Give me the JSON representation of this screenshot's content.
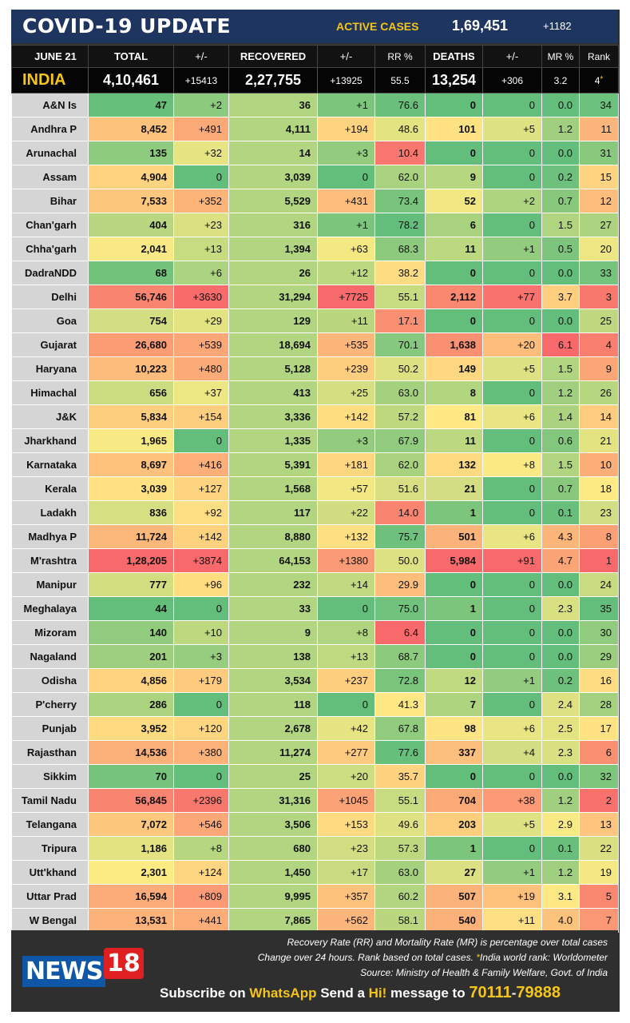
{
  "header": {
    "title": "COVID-19 UPDATE",
    "active_label": "ACTIVE CASES",
    "active_value": "1,69,451",
    "active_change": "+1182"
  },
  "columns": {
    "date": "JUNE 21",
    "total": "TOTAL",
    "total_change": "+/-",
    "recovered": "RECOVERED",
    "recovered_change": "+/-",
    "rr": "RR %",
    "deaths": "DEATHS",
    "deaths_change": "+/-",
    "mr": "MR %",
    "rank": "Rank"
  },
  "india": {
    "name": "INDIA",
    "total": "4,10,461",
    "total_change": "+15413",
    "recovered": "2,27,755",
    "recovered_change": "+13925",
    "rr": "55.5",
    "deaths": "13,254",
    "deaths_change": "+306",
    "mr": "3.2",
    "rank": "4",
    "rank_mark": "*"
  },
  "rows": [
    {
      "name": "A&N Is",
      "total": "47",
      "tc": "+2",
      "rec": "36",
      "rc": "+1",
      "rr": "76.6",
      "deaths": "0",
      "dc": "0",
      "mr": "0.0",
      "rank": "34"
    },
    {
      "name": "Andhra P",
      "total": "8,452",
      "tc": "+491",
      "rec": "4,111",
      "rc": "+194",
      "rr": "48.6",
      "deaths": "101",
      "dc": "+5",
      "mr": "1.2",
      "rank": "11"
    },
    {
      "name": "Arunachal",
      "total": "135",
      "tc": "+32",
      "rec": "14",
      "rc": "+3",
      "rr": "10.4",
      "deaths": "0",
      "dc": "0",
      "mr": "0.0",
      "rank": "31"
    },
    {
      "name": "Assam",
      "total": "4,904",
      "tc": "0",
      "rec": "3,039",
      "rc": "0",
      "rr": "62.0",
      "deaths": "9",
      "dc": "0",
      "mr": "0.2",
      "rank": "15"
    },
    {
      "name": "Bihar",
      "total": "7,533",
      "tc": "+352",
      "rec": "5,529",
      "rc": "+431",
      "rr": "73.4",
      "deaths": "52",
      "dc": "+2",
      "mr": "0.7",
      "rank": "12"
    },
    {
      "name": "Chan'garh",
      "total": "404",
      "tc": "+23",
      "rec": "316",
      "rc": "+1",
      "rr": "78.2",
      "deaths": "6",
      "dc": "0",
      "mr": "1.5",
      "rank": "27"
    },
    {
      "name": "Chha'garh",
      "total": "2,041",
      "tc": "+13",
      "rec": "1,394",
      "rc": "+63",
      "rr": "68.3",
      "deaths": "11",
      "dc": "+1",
      "mr": "0.5",
      "rank": "20"
    },
    {
      "name": "DadraNDD",
      "total": "68",
      "tc": "+6",
      "rec": "26",
      "rc": "+12",
      "rr": "38.2",
      "deaths": "0",
      "dc": "0",
      "mr": "0.0",
      "rank": "33"
    },
    {
      "name": "Delhi",
      "total": "56,746",
      "tc": "+3630",
      "rec": "31,294",
      "rc": "+7725",
      "rr": "55.1",
      "deaths": "2,112",
      "dc": "+77",
      "mr": "3.7",
      "rank": "3"
    },
    {
      "name": "Goa",
      "total": "754",
      "tc": "+29",
      "rec": "129",
      "rc": "+11",
      "rr": "17.1",
      "deaths": "0",
      "dc": "0",
      "mr": "0.0",
      "rank": "25"
    },
    {
      "name": "Gujarat",
      "total": "26,680",
      "tc": "+539",
      "rec": "18,694",
      "rc": "+535",
      "rr": "70.1",
      "deaths": "1,638",
      "dc": "+20",
      "mr": "6.1",
      "rank": "4"
    },
    {
      "name": "Haryana",
      "total": "10,223",
      "tc": "+480",
      "rec": "5,128",
      "rc": "+239",
      "rr": "50.2",
      "deaths": "149",
      "dc": "+5",
      "mr": "1.5",
      "rank": "9"
    },
    {
      "name": "Himachal",
      "total": "656",
      "tc": "+37",
      "rec": "413",
      "rc": "+25",
      "rr": "63.0",
      "deaths": "8",
      "dc": "0",
      "mr": "1.2",
      "rank": "26"
    },
    {
      "name": "J&K",
      "total": "5,834",
      "tc": "+154",
      "rec": "3,336",
      "rc": "+142",
      "rr": "57.2",
      "deaths": "81",
      "dc": "+6",
      "mr": "1.4",
      "rank": "14"
    },
    {
      "name": "Jharkhand",
      "total": "1,965",
      "tc": "0",
      "rec": "1,335",
      "rc": "+3",
      "rr": "67.9",
      "deaths": "11",
      "dc": "0",
      "mr": "0.6",
      "rank": "21"
    },
    {
      "name": "Karnataka",
      "total": "8,697",
      "tc": "+416",
      "rec": "5,391",
      "rc": "+181",
      "rr": "62.0",
      "deaths": "132",
      "dc": "+8",
      "mr": "1.5",
      "rank": "10"
    },
    {
      "name": "Kerala",
      "total": "3,039",
      "tc": "+127",
      "rec": "1,568",
      "rc": "+57",
      "rr": "51.6",
      "deaths": "21",
      "dc": "0",
      "mr": "0.7",
      "rank": "18"
    },
    {
      "name": "Ladakh",
      "total": "836",
      "tc": "+92",
      "rec": "117",
      "rc": "+22",
      "rr": "14.0",
      "deaths": "1",
      "dc": "0",
      "mr": "0.1",
      "rank": "23"
    },
    {
      "name": "Madhya P",
      "total": "11,724",
      "tc": "+142",
      "rec": "8,880",
      "rc": "+132",
      "rr": "75.7",
      "deaths": "501",
      "dc": "+6",
      "mr": "4.3",
      "rank": "8"
    },
    {
      "name": "M'rashtra",
      "total": "1,28,205",
      "tc": "+3874",
      "rec": "64,153",
      "rc": "+1380",
      "rr": "50.0",
      "deaths": "5,984",
      "dc": "+91",
      "mr": "4.7",
      "rank": "1"
    },
    {
      "name": "Manipur",
      "total": "777",
      "tc": "+96",
      "rec": "232",
      "rc": "+14",
      "rr": "29.9",
      "deaths": "0",
      "dc": "0",
      "mr": "0.0",
      "rank": "24"
    },
    {
      "name": "Meghalaya",
      "total": "44",
      "tc": "0",
      "rec": "33",
      "rc": "0",
      "rr": "75.0",
      "deaths": "1",
      "dc": "0",
      "mr": "2.3",
      "rank": "35"
    },
    {
      "name": "Mizoram",
      "total": "140",
      "tc": "+10",
      "rec": "9",
      "rc": "+8",
      "rr": "6.4",
      "deaths": "0",
      "dc": "0",
      "mr": "0.0",
      "rank": "30"
    },
    {
      "name": "Nagaland",
      "total": "201",
      "tc": "+3",
      "rec": "138",
      "rc": "+13",
      "rr": "68.7",
      "deaths": "0",
      "dc": "0",
      "mr": "0.0",
      "rank": "29"
    },
    {
      "name": "Odisha",
      "total": "4,856",
      "tc": "+179",
      "rec": "3,534",
      "rc": "+237",
      "rr": "72.8",
      "deaths": "12",
      "dc": "+1",
      "mr": "0.2",
      "rank": "16"
    },
    {
      "name": "P'cherry",
      "total": "286",
      "tc": "0",
      "rec": "118",
      "rc": "0",
      "rr": "41.3",
      "deaths": "7",
      "dc": "0",
      "mr": "2.4",
      "rank": "28"
    },
    {
      "name": "Punjab",
      "total": "3,952",
      "tc": "+120",
      "rec": "2,678",
      "rc": "+42",
      "rr": "67.8",
      "deaths": "98",
      "dc": "+6",
      "mr": "2.5",
      "rank": "17"
    },
    {
      "name": "Rajasthan",
      "total": "14,536",
      "tc": "+380",
      "rec": "11,274",
      "rc": "+277",
      "rr": "77.6",
      "deaths": "337",
      "dc": "+4",
      "mr": "2.3",
      "rank": "6"
    },
    {
      "name": "Sikkim",
      "total": "70",
      "tc": "0",
      "rec": "25",
      "rc": "+20",
      "rr": "35.7",
      "deaths": "0",
      "dc": "0",
      "mr": "0.0",
      "rank": "32"
    },
    {
      "name": "Tamil Nadu",
      "total": "56,845",
      "tc": "+2396",
      "rec": "31,316",
      "rc": "+1045",
      "rr": "55.1",
      "deaths": "704",
      "dc": "+38",
      "mr": "1.2",
      "rank": "2"
    },
    {
      "name": "Telangana",
      "total": "7,072",
      "tc": "+546",
      "rec": "3,506",
      "rc": "+153",
      "rr": "49.6",
      "deaths": "203",
      "dc": "+5",
      "mr": "2.9",
      "rank": "13"
    },
    {
      "name": "Tripura",
      "total": "1,186",
      "tc": "+8",
      "rec": "680",
      "rc": "+23",
      "rr": "57.3",
      "deaths": "1",
      "dc": "0",
      "mr": "0.1",
      "rank": "22"
    },
    {
      "name": "Utt'khand",
      "total": "2,301",
      "tc": "+124",
      "rec": "1,450",
      "rc": "+17",
      "rr": "63.0",
      "deaths": "27",
      "dc": "+1",
      "mr": "1.2",
      "rank": "19"
    },
    {
      "name": "Uttar Prad",
      "total": "16,594",
      "tc": "+809",
      "rec": "9,995",
      "rc": "+357",
      "rr": "60.2",
      "deaths": "507",
      "dc": "+19",
      "mr": "3.1",
      "rank": "5"
    },
    {
      "name": "W Bengal",
      "total": "13,531",
      "tc": "+441",
      "rec": "7,865",
      "rc": "+562",
      "rr": "58.1",
      "deaths": "540",
      "dc": "+11",
      "mr": "4.0",
      "rank": "7"
    }
  ],
  "footer": {
    "note1": "Recovery Rate (RR) and Mortality Rate (MR) is percentage over total cases",
    "note2a": "Change over 24 hours. Rank based on total cases. ",
    "note2_mark": "*",
    "note2b": "India world rank: Worldometer",
    "note3": "Source: Ministry of Health & Family Welfare, Govt. of India",
    "logo_news": "NEWS",
    "logo_18": "18",
    "sub_a": "Subscribe on ",
    "sub_whatsapp": "WhatsApp",
    "sub_b": " Send a ",
    "sub_hi": "Hi!",
    "sub_c": " message to ",
    "sub_num1": "70111",
    "sub_dash": "-",
    "sub_num2": "79888"
  },
  "colors": {
    "title_bar": "#1e3560",
    "accent_yellow": "#f5c518",
    "recovered_green": "#3fb24a",
    "deaths_red": "#e8412c",
    "scale_green": "#63be7b",
    "scale_yellow": "#ffeb84",
    "scale_red": "#f8696b"
  }
}
